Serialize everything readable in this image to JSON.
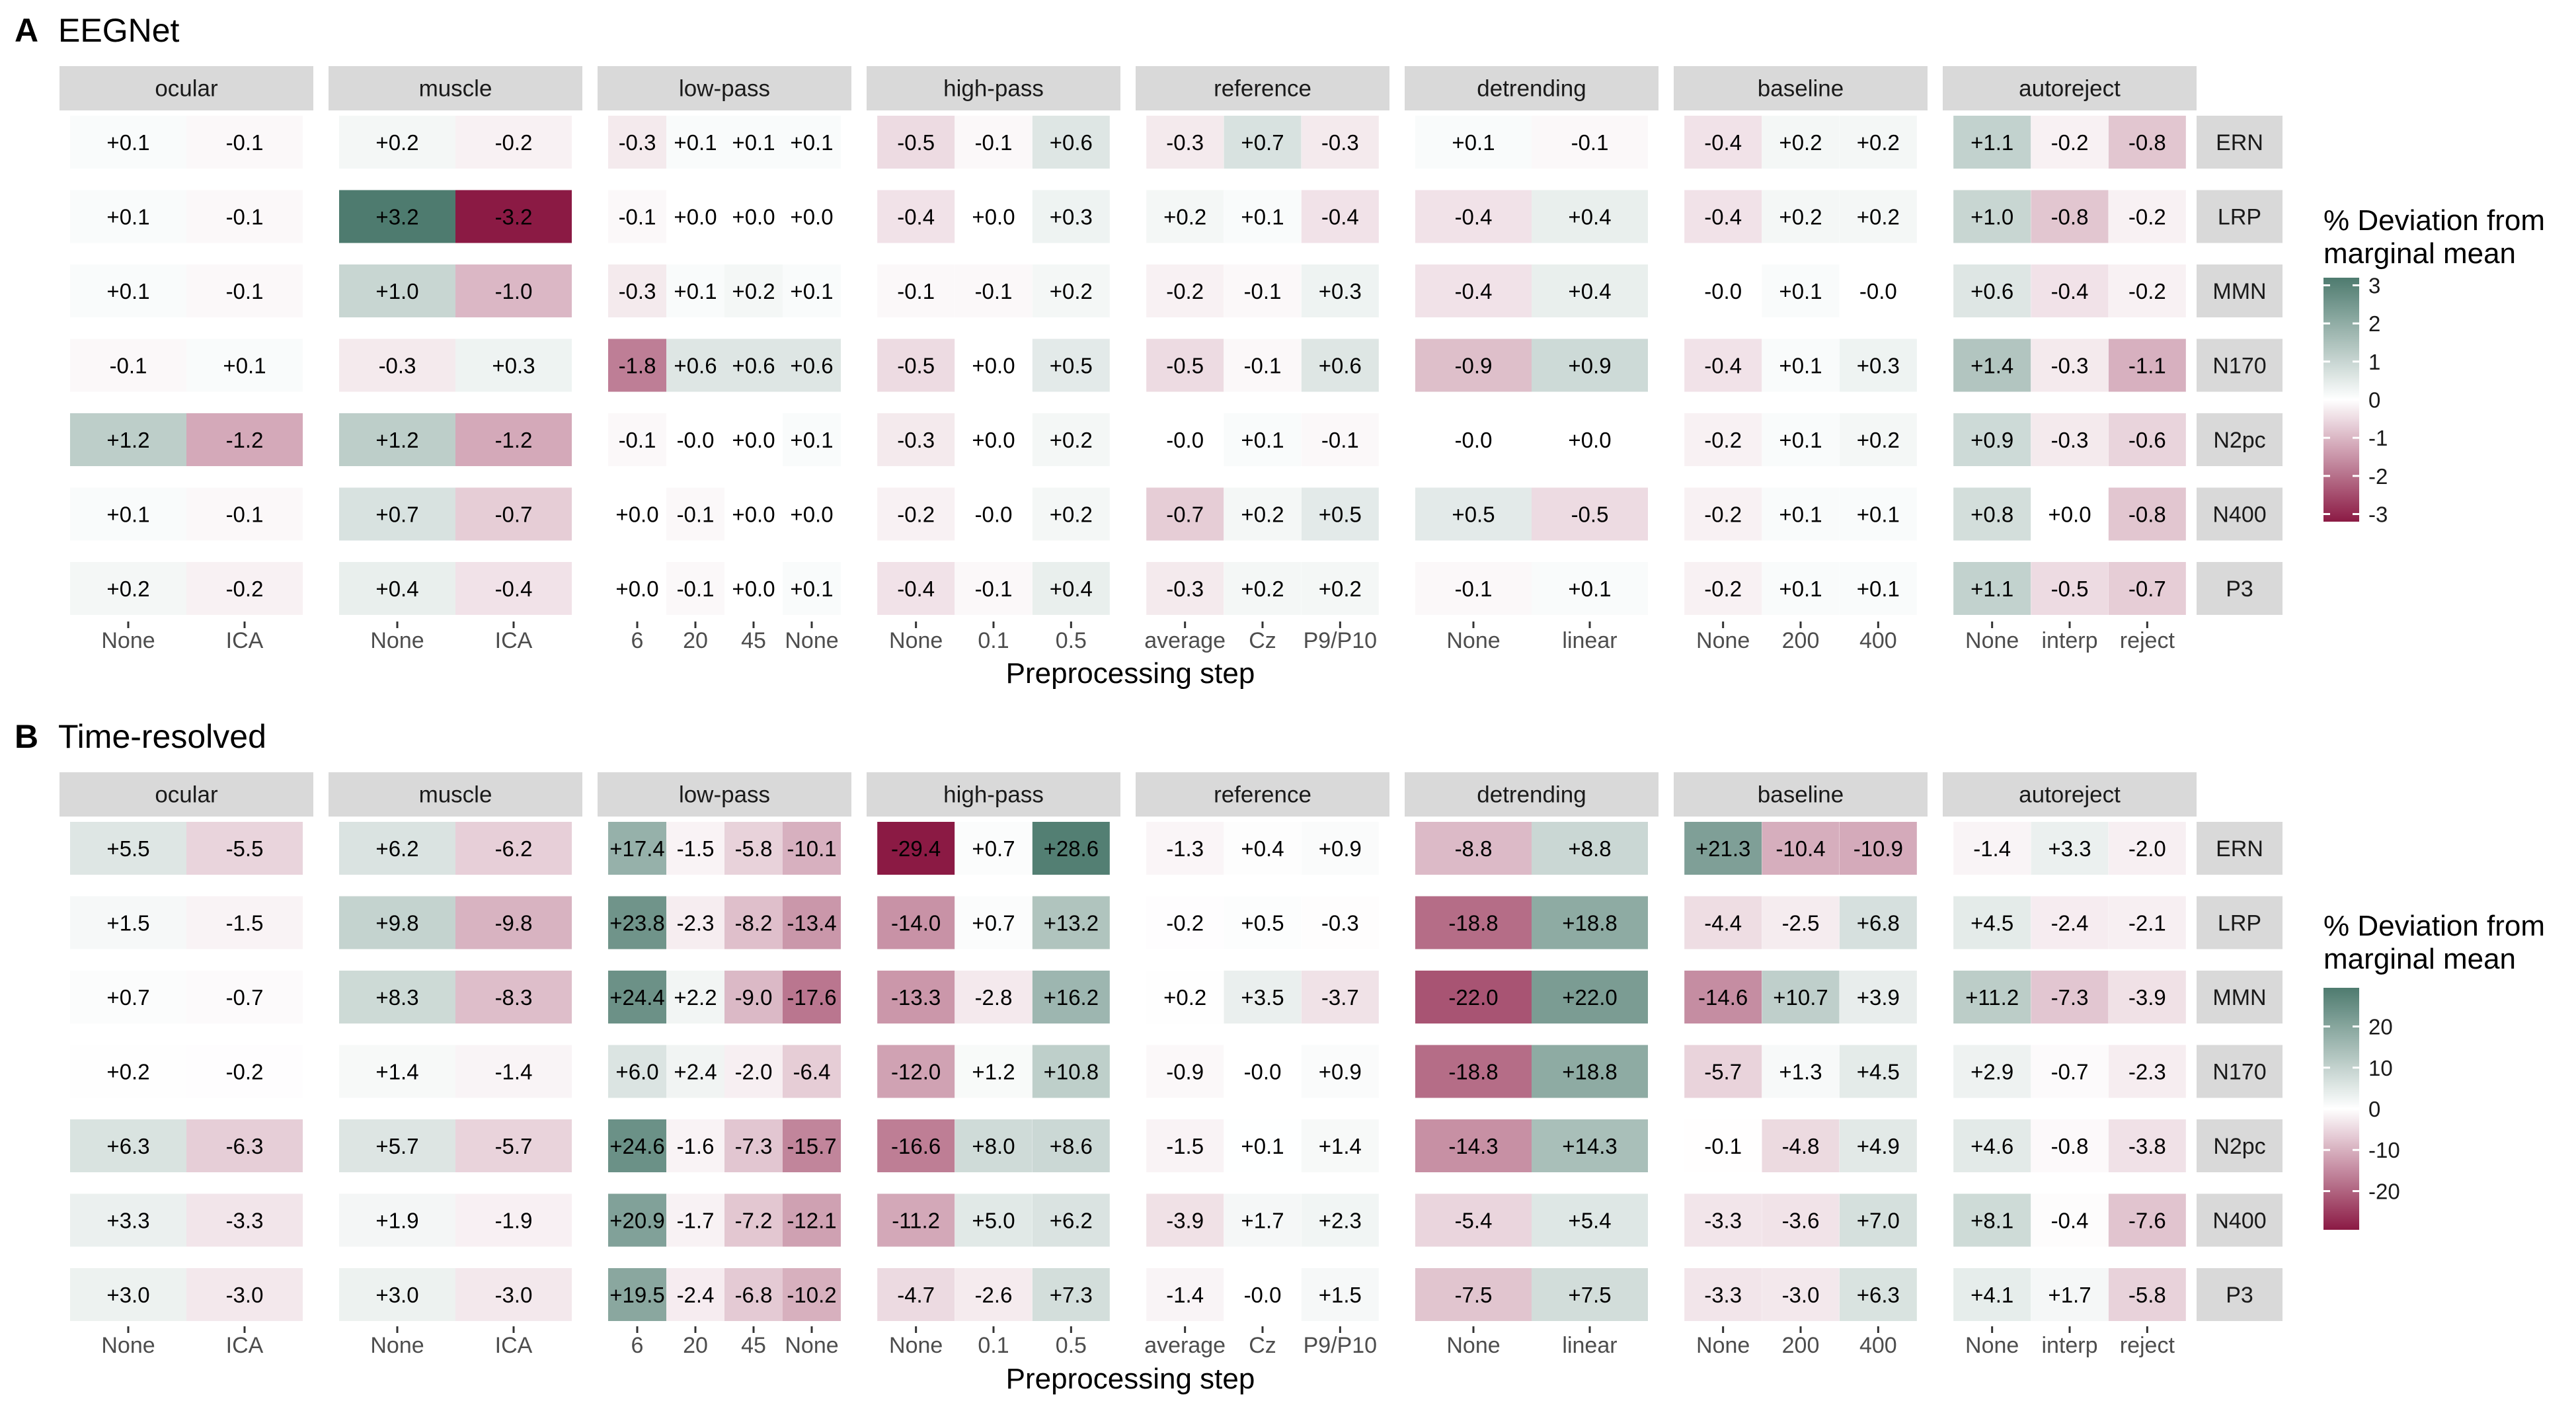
{
  "chart_data": [
    {
      "type": "heatmap",
      "panel_label": "A",
      "title": "EEGNet",
      "xlabel": "Preprocessing step",
      "rows": [
        "ERN",
        "LRP",
        "MMN",
        "N170",
        "N2pc",
        "N400",
        "P3"
      ],
      "facets": [
        {
          "name": "ocular",
          "levels": [
            "None",
            "ICA"
          ],
          "values": [
            [
              0.1,
              -0.1
            ],
            [
              0.1,
              -0.1
            ],
            [
              0.1,
              -0.1
            ],
            [
              -0.1,
              0.1
            ],
            [
              1.2,
              -1.2
            ],
            [
              0.1,
              -0.1
            ],
            [
              0.2,
              -0.2
            ]
          ]
        },
        {
          "name": "muscle",
          "levels": [
            "None",
            "ICA"
          ],
          "values": [
            [
              0.2,
              -0.2
            ],
            [
              3.2,
              -3.2
            ],
            [
              1.0,
              -1.0
            ],
            [
              -0.3,
              0.3
            ],
            [
              1.2,
              -1.2
            ],
            [
              0.7,
              -0.7
            ],
            [
              0.4,
              -0.4
            ]
          ]
        },
        {
          "name": "low-pass",
          "levels": [
            "6",
            "20",
            "45",
            "None"
          ],
          "values": [
            [
              -0.3,
              0.1,
              0.1,
              0.1
            ],
            [
              -0.1,
              0.0,
              0.0,
              0.0
            ],
            [
              -0.3,
              0.1,
              0.2,
              0.1
            ],
            [
              -1.8,
              0.6,
              0.6,
              0.6
            ],
            [
              -0.1,
              -0.0,
              0.0,
              0.1
            ],
            [
              0.0,
              -0.1,
              0.0,
              0.0
            ],
            [
              0.0,
              -0.1,
              0.0,
              0.1
            ]
          ]
        },
        {
          "name": "high-pass",
          "levels": [
            "None",
            "0.1",
            "0.5"
          ],
          "values": [
            [
              -0.5,
              -0.1,
              0.6
            ],
            [
              -0.4,
              0.0,
              0.3
            ],
            [
              -0.1,
              -0.1,
              0.2
            ],
            [
              -0.5,
              0.0,
              0.5
            ],
            [
              -0.3,
              0.0,
              0.2
            ],
            [
              -0.2,
              -0.0,
              0.2
            ],
            [
              -0.4,
              -0.1,
              0.4
            ]
          ]
        },
        {
          "name": "reference",
          "levels": [
            "average",
            "Cz",
            "P9/P10"
          ],
          "values": [
            [
              -0.3,
              0.7,
              -0.3
            ],
            [
              0.2,
              0.1,
              -0.4
            ],
            [
              -0.2,
              -0.1,
              0.3
            ],
            [
              -0.5,
              -0.1,
              0.6
            ],
            [
              -0.0,
              0.1,
              -0.1
            ],
            [
              -0.7,
              0.2,
              0.5
            ],
            [
              -0.3,
              0.2,
              0.2
            ]
          ]
        },
        {
          "name": "detrending",
          "levels": [
            "None",
            "linear"
          ],
          "values": [
            [
              0.1,
              -0.1
            ],
            [
              -0.4,
              0.4
            ],
            [
              -0.4,
              0.4
            ],
            [
              -0.9,
              0.9
            ],
            [
              -0.0,
              0.0
            ],
            [
              0.5,
              -0.5
            ],
            [
              -0.1,
              0.1
            ]
          ]
        },
        {
          "name": "baseline",
          "levels": [
            "None",
            "200",
            "400"
          ],
          "values": [
            [
              -0.4,
              0.2,
              0.2
            ],
            [
              -0.4,
              0.2,
              0.2
            ],
            [
              -0.0,
              0.1,
              -0.0
            ],
            [
              -0.4,
              0.1,
              0.3
            ],
            [
              -0.2,
              0.1,
              0.2
            ],
            [
              -0.2,
              0.1,
              0.1
            ],
            [
              -0.2,
              0.1,
              0.1
            ]
          ]
        },
        {
          "name": "autoreject",
          "levels": [
            "None",
            "interp",
            "reject"
          ],
          "values": [
            [
              1.1,
              -0.2,
              -0.8
            ],
            [
              1.0,
              -0.8,
              -0.2
            ],
            [
              0.6,
              -0.4,
              -0.2
            ],
            [
              1.4,
              -0.3,
              -1.1
            ],
            [
              0.9,
              -0.3,
              -0.6
            ],
            [
              0.8,
              0.0,
              -0.8
            ],
            [
              1.1,
              -0.5,
              -0.7
            ]
          ]
        }
      ],
      "legend": {
        "title": [
          "% Deviation from",
          "marginal mean"
        ],
        "ticks": [
          3,
          2,
          1,
          0,
          -1,
          -2,
          -3
        ],
        "tick_labels": [
          "3",
          "2",
          "1",
          "0",
          "-1",
          "-2",
          "-3"
        ],
        "limit": 3.2
      },
      "colors": {
        "positive": "#4e7b6f",
        "neutral": "#ffffff",
        "negative": "#8b1a44"
      }
    },
    {
      "type": "heatmap",
      "panel_label": "B",
      "title": "Time-resolved",
      "xlabel": "Preprocessing step",
      "rows": [
        "ERN",
        "LRP",
        "MMN",
        "N170",
        "N2pc",
        "N400",
        "P3"
      ],
      "facets": [
        {
          "name": "ocular",
          "levels": [
            "None",
            "ICA"
          ],
          "values": [
            [
              5.5,
              -5.5
            ],
            [
              1.5,
              -1.5
            ],
            [
              0.7,
              -0.7
            ],
            [
              0.2,
              -0.2
            ],
            [
              6.3,
              -6.3
            ],
            [
              3.3,
              -3.3
            ],
            [
              3.0,
              -3.0
            ]
          ]
        },
        {
          "name": "muscle",
          "levels": [
            "None",
            "ICA"
          ],
          "values": [
            [
              6.2,
              -6.2
            ],
            [
              9.8,
              -9.8
            ],
            [
              8.3,
              -8.3
            ],
            [
              1.4,
              -1.4
            ],
            [
              5.7,
              -5.7
            ],
            [
              1.9,
              -1.9
            ],
            [
              3.0,
              -3.0
            ]
          ]
        },
        {
          "name": "low-pass",
          "levels": [
            "6",
            "20",
            "45",
            "None"
          ],
          "values": [
            [
              17.4,
              -1.5,
              -5.8,
              -10.1
            ],
            [
              23.8,
              -2.3,
              -8.2,
              -13.4
            ],
            [
              24.4,
              2.2,
              -9.0,
              -17.6
            ],
            [
              6.0,
              2.4,
              -2.0,
              -6.4
            ],
            [
              24.6,
              -1.6,
              -7.3,
              -15.7
            ],
            [
              20.9,
              -1.7,
              -7.2,
              -12.1
            ],
            [
              19.5,
              -2.4,
              -6.8,
              -10.2
            ]
          ]
        },
        {
          "name": "high-pass",
          "levels": [
            "None",
            "0.1",
            "0.5"
          ],
          "values": [
            [
              -29.4,
              0.7,
              28.6
            ],
            [
              -14.0,
              0.7,
              13.2
            ],
            [
              -13.3,
              -2.8,
              16.2
            ],
            [
              -12.0,
              1.2,
              10.8
            ],
            [
              -16.6,
              8.0,
              8.6
            ],
            [
              -11.2,
              5.0,
              6.2
            ],
            [
              -4.7,
              -2.6,
              7.3
            ]
          ]
        },
        {
          "name": "reference",
          "levels": [
            "average",
            "Cz",
            "P9/P10"
          ],
          "values": [
            [
              -1.3,
              0.4,
              0.9
            ],
            [
              -0.2,
              0.5,
              -0.3
            ],
            [
              0.2,
              3.5,
              -3.7
            ],
            [
              -0.9,
              -0.0,
              0.9
            ],
            [
              -1.5,
              0.1,
              1.4
            ],
            [
              -3.9,
              1.7,
              2.3
            ],
            [
              -1.4,
              -0.0,
              1.5
            ]
          ]
        },
        {
          "name": "detrending",
          "levels": [
            "None",
            "linear"
          ],
          "values": [
            [
              -8.8,
              8.8
            ],
            [
              -18.8,
              18.8
            ],
            [
              -22.0,
              22.0
            ],
            [
              -18.8,
              18.8
            ],
            [
              -14.3,
              14.3
            ],
            [
              -5.4,
              5.4
            ],
            [
              -7.5,
              7.5
            ]
          ]
        },
        {
          "name": "baseline",
          "levels": [
            "None",
            "200",
            "400"
          ],
          "values": [
            [
              21.3,
              -10.4,
              -10.9
            ],
            [
              -4.4,
              -2.5,
              6.8
            ],
            [
              -14.6,
              10.7,
              3.9
            ],
            [
              -5.7,
              1.3,
              4.5
            ],
            [
              -0.1,
              -4.8,
              4.9
            ],
            [
              -3.3,
              -3.6,
              7.0
            ],
            [
              -3.3,
              -3.0,
              6.3
            ]
          ]
        },
        {
          "name": "autoreject",
          "levels": [
            "None",
            "interp",
            "reject"
          ],
          "values": [
            [
              -1.4,
              3.3,
              -2.0
            ],
            [
              4.5,
              -2.4,
              -2.1
            ],
            [
              11.2,
              -7.3,
              -3.9
            ],
            [
              2.9,
              -0.7,
              -2.3
            ],
            [
              4.6,
              -0.8,
              -3.8
            ],
            [
              8.1,
              -0.4,
              -7.6
            ],
            [
              4.1,
              1.7,
              -5.8
            ]
          ]
        }
      ],
      "legend": {
        "title": [
          "% Deviation from",
          "marginal mean"
        ],
        "ticks": [
          20,
          10,
          0,
          -10,
          -20
        ],
        "tick_labels": [
          "20",
          "10",
          "0",
          "-10",
          "-20"
        ],
        "limit": 29.4
      },
      "colors": {
        "positive": "#4e7b6f",
        "neutral": "#ffffff",
        "negative": "#8b1a44"
      }
    }
  ]
}
